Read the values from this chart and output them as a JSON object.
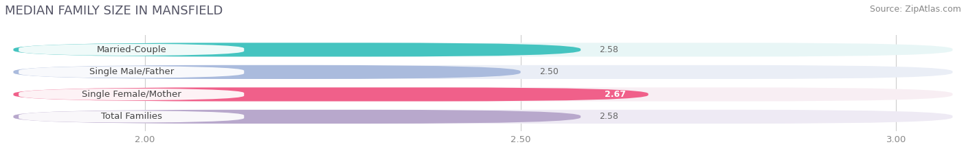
{
  "title": "MEDIAN FAMILY SIZE IN MANSFIELD",
  "source": "Source: ZipAtlas.com",
  "categories": [
    "Married-Couple",
    "Single Male/Father",
    "Single Female/Mother",
    "Total Families"
  ],
  "values": [
    2.58,
    2.5,
    2.67,
    2.58
  ],
  "bar_colors": [
    "#45C4C0",
    "#AABBDD",
    "#F0608A",
    "#B8A8CC"
  ],
  "bar_bg_colors": [
    "#E8F6F6",
    "#EAEEF6",
    "#F8EEF3",
    "#EEEAF4"
  ],
  "value_inside": [
    false,
    false,
    true,
    false
  ],
  "xlim_min": 1.82,
  "xlim_max": 3.08,
  "xticks": [
    2.0,
    2.5,
    3.0
  ],
  "xtick_labels": [
    "2.00",
    "2.50",
    "3.00"
  ],
  "title_fontsize": 13,
  "source_fontsize": 9,
  "label_fontsize": 9.5,
  "value_fontsize": 9
}
